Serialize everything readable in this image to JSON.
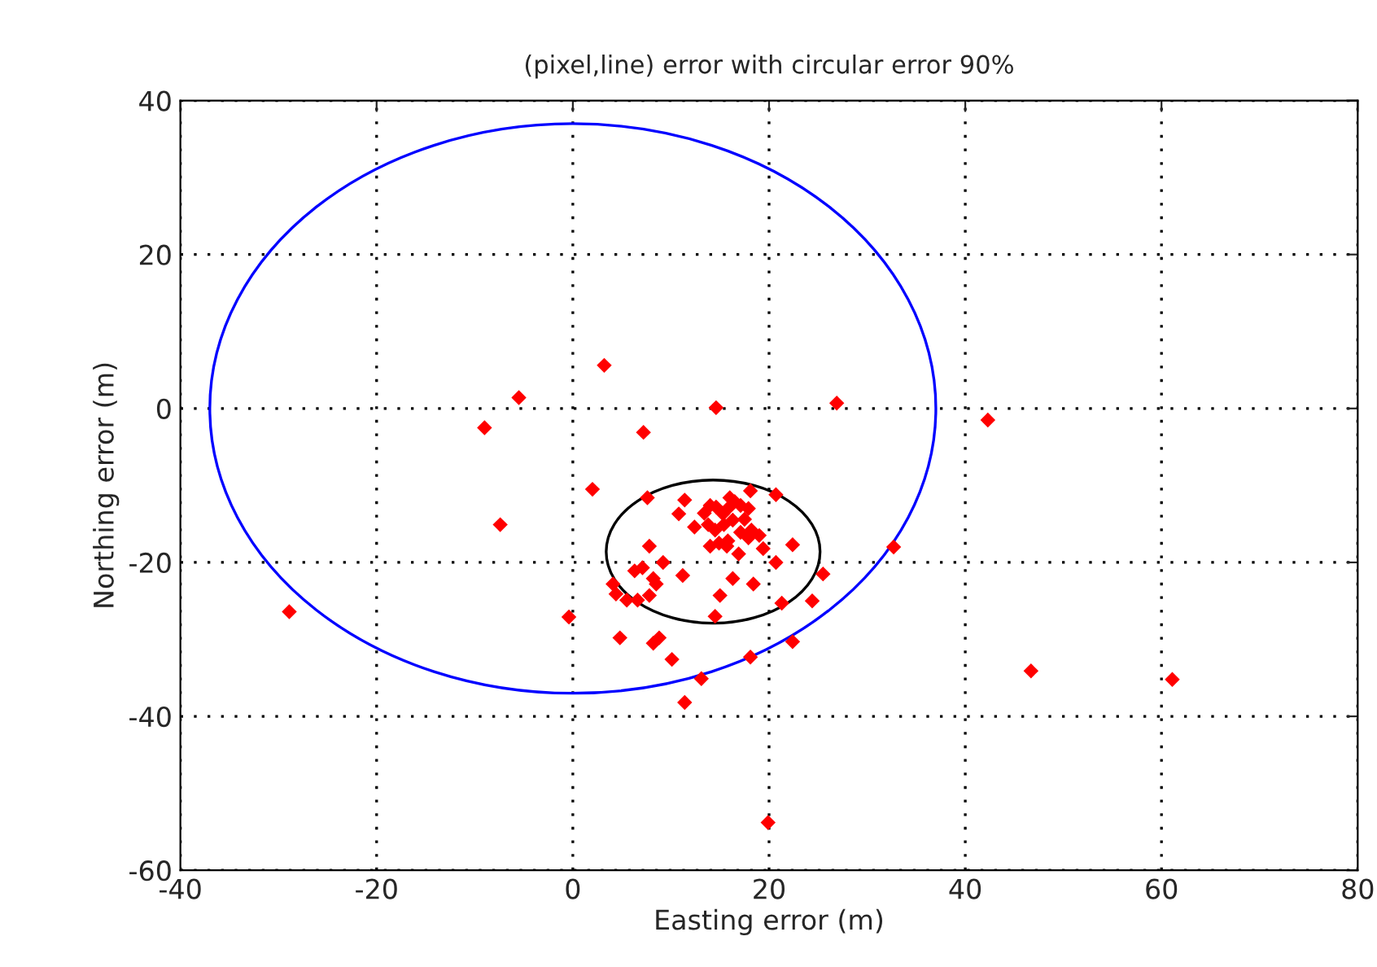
{
  "chart_data": {
    "type": "scatter",
    "title": "(pixel,line) error with circular error 90%",
    "xlabel": "Easting error (m)",
    "ylabel": "Northing error (m)",
    "xlim": [
      -40,
      80
    ],
    "xticks": [
      -40,
      -20,
      0,
      20,
      40,
      60,
      80
    ],
    "ylim": [
      -60,
      40
    ],
    "yticks": [
      -60,
      -40,
      -20,
      0,
      20,
      40
    ],
    "grid": true,
    "legend": false,
    "series": [
      {
        "color": "#ff0000",
        "marker": "diamond",
        "x": [
          3.2,
          -5.5,
          -9.0,
          7.2,
          2.0,
          -7.4,
          -0.4,
          4.8,
          -28.9,
          26.9,
          42.3,
          32.7,
          22.4,
          25.5,
          24.4,
          22.4,
          46.7,
          61.1,
          19.9,
          14.6,
          7.6,
          11.4,
          10.8,
          13.4,
          14.0,
          14.6,
          15.3,
          16.0,
          16.5,
          15.8,
          17.1,
          17.9,
          18.1,
          17.5,
          16.3,
          15.4,
          14.5,
          13.8,
          12.4,
          18.2,
          19.0,
          17.9,
          17.1,
          15.8,
          14.9,
          14.0,
          15.7,
          16.9,
          19.4,
          20.7,
          7.8,
          9.2,
          7.1,
          6.3,
          8.2,
          8.5,
          11.2,
          16.3,
          18.4,
          20.7,
          4.1,
          4.4,
          5.5,
          6.6,
          7.8,
          15.0,
          21.3,
          14.5,
          8.2,
          8.8,
          10.1,
          13.1,
          11.4,
          18.1
        ],
        "values": [
          5.6,
          1.4,
          -2.5,
          -3.1,
          -10.5,
          -15.1,
          -27.1,
          -29.8,
          -26.4,
          0.7,
          -1.5,
          -18.0,
          -17.7,
          -21.5,
          -25.0,
          -30.3,
          -34.1,
          -35.2,
          -53.8,
          0.1,
          -11.6,
          -11.9,
          -13.7,
          -13.6,
          -12.6,
          -12.8,
          -13.7,
          -11.6,
          -12.1,
          -13.0,
          -12.6,
          -13.0,
          -10.7,
          -14.4,
          -14.5,
          -15.1,
          -15.8,
          -15.1,
          -15.4,
          -15.8,
          -16.5,
          -16.8,
          -16.1,
          -17.2,
          -17.5,
          -17.9,
          -17.9,
          -18.9,
          -18.2,
          -11.2,
          -17.9,
          -20.0,
          -20.7,
          -21.1,
          -22.1,
          -22.8,
          -21.7,
          -22.1,
          -22.8,
          -20.0,
          -22.8,
          -24.1,
          -24.9,
          -24.9,
          -24.3,
          -24.3,
          -25.3,
          -27.0,
          -30.5,
          -29.8,
          -32.6,
          -35.1,
          -38.2,
          -32.3
        ]
      }
    ]
  }
}
